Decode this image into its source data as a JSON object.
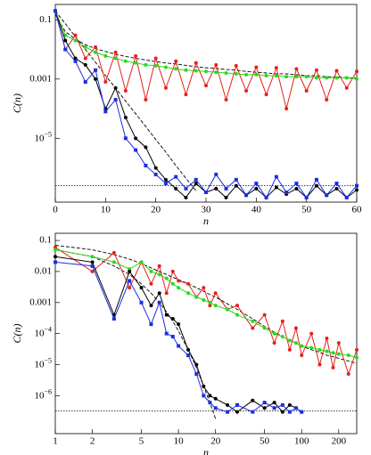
{
  "chart_data": [
    {
      "type": "line",
      "xlabel": "n",
      "ylabel": "C(n)",
      "x": [
        0,
        2,
        4,
        6,
        8,
        10,
        12,
        14,
        16,
        18,
        20,
        22,
        24,
        26,
        28,
        30,
        32,
        34,
        36,
        38,
        40,
        42,
        44,
        46,
        48,
        50,
        52,
        54,
        56,
        58,
        60
      ],
      "xlim": [
        0,
        60
      ],
      "ylim": [
        7e-08,
        0.33
      ],
      "yscale": "log",
      "xticks": [
        0,
        10,
        20,
        30,
        40,
        50,
        60
      ],
      "yticks": [
        0.1,
        0.001,
        {
          "value": 1e-05,
          "label": "10",
          "sup": "−5"
        }
      ],
      "reference_lines": [
        2.5e-07
      ],
      "series": [
        {
          "color": "#000000",
          "style": "dashed",
          "values": [
            0.15,
            0.04,
            0.022,
            0.0145,
            0.0107,
            0.0085,
            0.0069,
            0.0058,
            0.005,
            0.0044,
            0.0039,
            0.0035,
            0.0032,
            0.0029,
            0.0026,
            0.0024,
            0.0023,
            0.0021,
            0.002,
            0.0018,
            0.0017,
            0.0016,
            0.0015,
            0.0015,
            0.0014,
            0.0013,
            0.0013,
            0.0012,
            0.0012,
            0.0011,
            0.0011
          ]
        },
        {
          "color": "#000000",
          "style": "dashed",
          "values": [
            0.2,
            0.074,
            0.027,
            0.01,
            0.0037,
            0.0013,
            0.0005,
            0.00018,
            6.7e-05,
            2.5e-05,
            9.1e-06,
            3.4e-06,
            1.2e-06,
            4.5e-07,
            1.7e-07,
            null,
            null,
            null,
            null,
            null,
            null,
            null,
            null,
            null,
            null,
            null,
            null,
            null,
            null,
            null,
            null
          ]
        },
        {
          "color": "#e8201c",
          "marker": "circle",
          "values": [
            0.2,
            0.01,
            0.03,
            0.005,
            0.012,
            0.0008,
            0.008,
            0.0004,
            0.006,
            0.0002,
            0.005,
            0.0005,
            0.004,
            0.0003,
            0.0035,
            0.0006,
            0.003,
            0.0002,
            0.0028,
            0.0004,
            0.0025,
            0.0003,
            0.0024,
            0.0001,
            0.0022,
            0.0004,
            0.002,
            0.0002,
            0.0019,
            0.0005,
            0.0018
          ]
        },
        {
          "color": "#2bd81c",
          "marker": "circle",
          "values": [
            0.2,
            0.03,
            0.02,
            0.012,
            0.008,
            0.006,
            0.005,
            0.004,
            0.0035,
            0.003,
            0.0028,
            0.0025,
            0.0022,
            0.002,
            0.0019,
            0.0018,
            0.0017,
            0.0016,
            0.0015,
            0.0014,
            0.0014,
            0.0013,
            0.0013,
            0.0012,
            0.0012,
            0.0012,
            0.0011,
            0.0011,
            0.0011,
            0.0011,
            0.001
          ]
        },
        {
          "color": "#000000",
          "marker": "circle",
          "values": [
            0.2,
            0.02,
            0.005,
            0.003,
            0.001,
            0.0001,
            0.0005,
            5e-05,
            1e-05,
            5e-06,
            1e-06,
            4e-07,
            2e-07,
            1e-07,
            3e-07,
            1.5e-07,
            2e-07,
            1e-07,
            2.5e-07,
            1.2e-07,
            2e-07,
            1e-07,
            2.2e-07,
            1.3e-07,
            2e-07,
            1e-07,
            2.5e-07,
            1.2e-07,
            2e-07,
            1e-07,
            1.8e-07
          ]
        },
        {
          "color": "#1c2ee0",
          "marker": "square",
          "values": [
            0.2,
            0.01,
            0.004,
            0.0008,
            0.002,
            8e-05,
            0.0002,
            1e-05,
            4e-06,
            1.2e-06,
            6e-07,
            3e-07,
            5e-07,
            2e-07,
            4e-07,
            1.5e-07,
            6e-07,
            2e-07,
            4e-07,
            1.2e-07,
            3e-07,
            1e-07,
            5e-07,
            1.5e-07,
            3e-07,
            1e-07,
            4e-07,
            1.2e-07,
            3e-07,
            1e-07,
            2.5e-07
          ]
        }
      ]
    },
    {
      "type": "line",
      "xlabel": "n",
      "ylabel": "C(n)",
      "x": [
        1,
        2,
        3,
        4,
        5,
        6,
        7,
        8,
        9,
        10,
        12,
        14,
        16,
        18,
        20,
        25,
        30,
        40,
        50,
        60,
        70,
        80,
        90,
        100,
        120,
        140,
        160,
        180,
        200,
        240,
        280
      ],
      "xlim": [
        1,
        280
      ],
      "ylim": [
        6e-08,
        0.17
      ],
      "xscale": "log",
      "yscale": "log",
      "xticks": [
        1,
        2,
        5,
        10,
        20,
        50,
        100,
        200
      ],
      "yticks": [
        0.1,
        0.01,
        0.001,
        {
          "value": 0.0001,
          "label": "10",
          "sup": "−4"
        },
        {
          "value": 1e-05,
          "label": "10",
          "sup": "−5"
        },
        {
          "value": 1e-06,
          "label": "10",
          "sup": "−6"
        }
      ],
      "reference_lines": [
        3.2e-07
      ],
      "series": [
        {
          "color": "#000000",
          "style": "dashed",
          "values": [
            0.07,
            0.05,
            0.035,
            0.025,
            0.018,
            0.013,
            0.01,
            0.008,
            0.0065,
            0.0055,
            0.004,
            0.003,
            0.0023,
            0.0018,
            0.0015,
            0.0009,
            0.0006,
            0.0003,
            0.00017,
            0.00011,
            8e-05,
            6e-05,
            5e-05,
            4e-05,
            3e-05,
            2.5e-05,
            2e-05,
            1.8e-05,
            1.6e-05,
            1.3e-05,
            1.1e-05
          ]
        },
        {
          "color": "#000000",
          "style": "dashed",
          "values": [
            0.05,
            0.03,
            0.015,
            0.008,
            0.004,
            0.002,
            0.001,
            0.0005,
            0.00025,
            0.00012,
            3e-05,
            8e-06,
            2e-06,
            6e-07,
            1.8e-07,
            null,
            null,
            null,
            null,
            null,
            null,
            null,
            null,
            null,
            null,
            null,
            null,
            null,
            null,
            null,
            null
          ]
        },
        {
          "color": "#e8201c",
          "marker": "circle",
          "values": [
            0.06,
            0.01,
            0.04,
            0.003,
            0.02,
            0.004,
            0.015,
            0.002,
            0.01,
            0.005,
            0.004,
            0.0015,
            0.003,
            0.0008,
            0.002,
            0.0006,
            0.0008,
            0.00015,
            0.0004,
            5e-05,
            0.00025,
            3e-05,
            0.00015,
            2e-05,
            0.0001,
            1e-05,
            7e-05,
            8e-06,
            5e-05,
            5e-06,
            3e-05
          ]
        },
        {
          "color": "#2bd81c",
          "marker": "circle",
          "values": [
            0.05,
            0.03,
            0.02,
            0.012,
            0.02,
            0.01,
            0.008,
            0.006,
            0.004,
            0.003,
            0.002,
            0.0015,
            0.0012,
            0.001,
            0.0008,
            0.0006,
            0.0004,
            0.00025,
            0.00015,
            0.0001,
            8e-05,
            6e-05,
            5e-05,
            4e-05,
            3.5e-05,
            3e-05,
            2.7e-05,
            2.4e-05,
            2.2e-05,
            2e-05,
            1.7e-05
          ]
        },
        {
          "color": "#000000",
          "marker": "circle",
          "values": [
            0.03,
            0.02,
            0.0004,
            0.01,
            0.003,
            0.0008,
            0.002,
            0.0004,
            0.0003,
            0.0002,
            3e-05,
            1e-05,
            2e-06,
            1e-06,
            8e-07,
            5e-07,
            3e-07,
            7e-07,
            4e-07,
            6e-07,
            3e-07,
            5e-07,
            4e-07,
            3e-07,
            null,
            null,
            null,
            null,
            null,
            null,
            null
          ]
        },
        {
          "color": "#1c2ee0",
          "marker": "square",
          "values": [
            0.02,
            0.015,
            0.0003,
            0.005,
            0.001,
            0.0002,
            0.001,
            0.0001,
            8e-05,
            4e-05,
            2e-05,
            5e-06,
            1e-06,
            6e-07,
            4e-07,
            3e-07,
            5e-07,
            3e-07,
            6e-07,
            4e-07,
            5e-07,
            3e-07,
            4e-07,
            3e-07,
            null,
            null,
            null,
            null,
            null,
            null,
            null
          ]
        }
      ]
    }
  ]
}
